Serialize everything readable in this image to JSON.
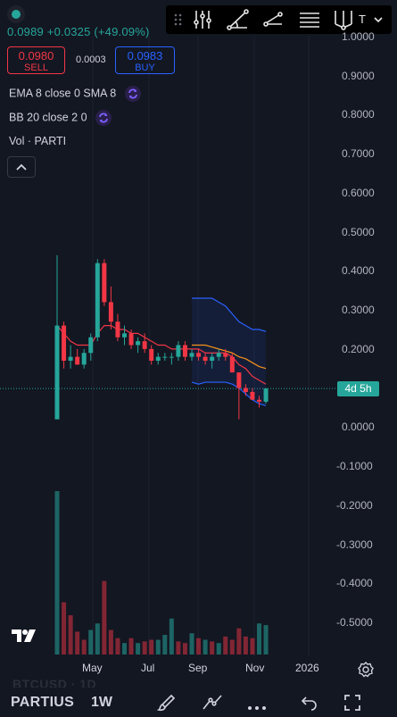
{
  "header": {
    "last_price": "0.0989",
    "change": "+0.0325 (+49.09%)",
    "sell": {
      "price": "0.0980",
      "label": "SELL"
    },
    "spread": "0.0003",
    "buy": {
      "price": "0.0983",
      "label": "BUY"
    },
    "toolbar_right_char": "T"
  },
  "indicators": {
    "ma_label": "EMA 8 close 0 SMA 8",
    "bb_label": "BB 20 close 2 0",
    "vol_label": "Vol · PARTI"
  },
  "axis": {
    "price_ticks": [
      "1.0000",
      "0.9000",
      "0.8000",
      "0.7000",
      "0.6000",
      "0.5000",
      "0.4000",
      "0.3000",
      "0.2000",
      "0.1000",
      "0.0000",
      "-0.1000",
      "-0.2000",
      "-0.3000",
      "-0.4000",
      "-0.5000"
    ],
    "time_ticks": [
      "May",
      "Jul",
      "Sep",
      "Nov",
      "2026"
    ]
  },
  "countdown": "4d 5h",
  "footer": {
    "symbol": "PARTIUS",
    "interval": "1W",
    "ghost_symbol": "BTCUSD · 1D"
  },
  "colors": {
    "up": "#26a69a",
    "down": "#f23645",
    "ema": "#f7931a",
    "sma": "#f23645",
    "bb_band": "#2962ff",
    "buy": "#2962ff"
  },
  "chart_data": {
    "type": "candlestick",
    "interval": "1W",
    "candles": [
      {
        "o": 0.02,
        "h": 0.44,
        "l": 0.02,
        "c": 0.26
      },
      {
        "o": 0.26,
        "h": 0.27,
        "l": 0.15,
        "c": 0.17
      },
      {
        "o": 0.17,
        "h": 0.21,
        "l": 0.15,
        "c": 0.18
      },
      {
        "o": 0.18,
        "h": 0.2,
        "l": 0.16,
        "c": 0.16
      },
      {
        "o": 0.16,
        "h": 0.2,
        "l": 0.15,
        "c": 0.19
      },
      {
        "o": 0.19,
        "h": 0.24,
        "l": 0.17,
        "c": 0.23
      },
      {
        "o": 0.23,
        "h": 0.43,
        "l": 0.22,
        "c": 0.42
      },
      {
        "o": 0.42,
        "h": 0.43,
        "l": 0.31,
        "c": 0.32
      },
      {
        "o": 0.32,
        "h": 0.36,
        "l": 0.25,
        "c": 0.27
      },
      {
        "o": 0.27,
        "h": 0.29,
        "l": 0.22,
        "c": 0.23
      },
      {
        "o": 0.23,
        "h": 0.26,
        "l": 0.21,
        "c": 0.24
      },
      {
        "o": 0.24,
        "h": 0.25,
        "l": 0.2,
        "c": 0.21
      },
      {
        "o": 0.21,
        "h": 0.23,
        "l": 0.19,
        "c": 0.22
      },
      {
        "o": 0.22,
        "h": 0.24,
        "l": 0.19,
        "c": 0.2
      },
      {
        "o": 0.2,
        "h": 0.21,
        "l": 0.16,
        "c": 0.17
      },
      {
        "o": 0.17,
        "h": 0.19,
        "l": 0.16,
        "c": 0.18
      },
      {
        "o": 0.18,
        "h": 0.19,
        "l": 0.17,
        "c": 0.18
      },
      {
        "o": 0.18,
        "h": 0.19,
        "l": 0.16,
        "c": 0.18
      },
      {
        "o": 0.18,
        "h": 0.22,
        "l": 0.17,
        "c": 0.21
      },
      {
        "o": 0.21,
        "h": 0.22,
        "l": 0.17,
        "c": 0.18
      },
      {
        "o": 0.18,
        "h": 0.2,
        "l": 0.17,
        "c": 0.19
      },
      {
        "o": 0.19,
        "h": 0.2,
        "l": 0.17,
        "c": 0.18
      },
      {
        "o": 0.18,
        "h": 0.19,
        "l": 0.16,
        "c": 0.17
      },
      {
        "o": 0.17,
        "h": 0.19,
        "l": 0.15,
        "c": 0.18
      },
      {
        "o": 0.18,
        "h": 0.2,
        "l": 0.17,
        "c": 0.19
      },
      {
        "o": 0.19,
        "h": 0.2,
        "l": 0.17,
        "c": 0.18
      },
      {
        "o": 0.18,
        "h": 0.19,
        "l": 0.14,
        "c": 0.14
      },
      {
        "o": 0.14,
        "h": 0.14,
        "l": 0.02,
        "c": 0.1
      },
      {
        "o": 0.1,
        "h": 0.11,
        "l": 0.08,
        "c": 0.09
      },
      {
        "o": 0.09,
        "h": 0.1,
        "l": 0.07,
        "c": 0.07
      },
      {
        "o": 0.07,
        "h": 0.08,
        "l": 0.05,
        "c": 0.065
      },
      {
        "o": 0.065,
        "h": 0.1,
        "l": 0.06,
        "c": 0.0989
      }
    ],
    "volume": [
      {
        "v": 1.0,
        "up": true
      },
      {
        "v": 0.32,
        "up": false
      },
      {
        "v": 0.24,
        "up": false
      },
      {
        "v": 0.14,
        "up": false
      },
      {
        "v": 0.09,
        "up": false
      },
      {
        "v": 0.15,
        "up": true
      },
      {
        "v": 0.19,
        "up": true
      },
      {
        "v": 0.45,
        "up": false
      },
      {
        "v": 0.15,
        "up": false
      },
      {
        "v": 0.1,
        "up": false
      },
      {
        "v": 0.07,
        "up": true
      },
      {
        "v": 0.1,
        "up": false
      },
      {
        "v": 0.07,
        "up": true
      },
      {
        "v": 0.08,
        "up": false
      },
      {
        "v": 0.09,
        "up": false
      },
      {
        "v": 0.09,
        "up": true
      },
      {
        "v": 0.12,
        "up": true
      },
      {
        "v": 0.22,
        "up": true
      },
      {
        "v": 0.08,
        "up": false
      },
      {
        "v": 0.07,
        "up": false
      },
      {
        "v": 0.13,
        "up": true
      },
      {
        "v": 0.1,
        "up": false
      },
      {
        "v": 0.09,
        "up": true
      },
      {
        "v": 0.08,
        "up": false
      },
      {
        "v": 0.07,
        "up": true
      },
      {
        "v": 0.11,
        "up": false
      },
      {
        "v": 0.09,
        "up": false
      },
      {
        "v": 0.16,
        "up": false
      },
      {
        "v": 0.11,
        "up": false
      },
      {
        "v": 0.1,
        "up": false
      },
      {
        "v": 0.19,
        "up": true
      },
      {
        "v": 0.18,
        "up": true
      }
    ],
    "ema8": [
      0.26,
      0.24,
      0.22,
      0.21,
      0.21,
      0.21,
      0.24,
      0.26,
      0.26,
      0.25,
      0.25,
      0.24,
      0.24,
      0.23,
      0.22,
      0.21,
      0.21,
      0.2,
      0.2,
      0.2,
      0.2,
      0.2,
      0.19,
      0.19,
      0.19,
      0.19,
      0.18,
      0.16,
      0.15,
      0.13,
      0.12,
      0.11
    ],
    "bb_upper": [
      null,
      null,
      null,
      null,
      null,
      null,
      null,
      null,
      null,
      null,
      null,
      null,
      null,
      null,
      null,
      null,
      null,
      null,
      null,
      null,
      0.33,
      0.33,
      0.33,
      0.33,
      0.32,
      0.31,
      0.29,
      0.27,
      0.26,
      0.25,
      0.25,
      0.245
    ],
    "bb_basis": [
      null,
      null,
      null,
      null,
      null,
      null,
      null,
      null,
      null,
      null,
      null,
      null,
      null,
      null,
      null,
      null,
      null,
      null,
      null,
      null,
      0.21,
      0.21,
      0.21,
      0.205,
      0.2,
      0.195,
      0.19,
      0.18,
      0.175,
      0.165,
      0.155,
      0.15
    ],
    "bb_lower": [
      null,
      null,
      null,
      null,
      null,
      null,
      null,
      null,
      null,
      null,
      null,
      null,
      null,
      null,
      null,
      null,
      null,
      null,
      null,
      null,
      0.115,
      0.11,
      0.115,
      0.115,
      0.115,
      0.115,
      0.11,
      0.1,
      0.085,
      0.07,
      0.06,
      0.055
    ],
    "y_range": [
      -0.55,
      1.02
    ],
    "last_price": 0.0989
  }
}
